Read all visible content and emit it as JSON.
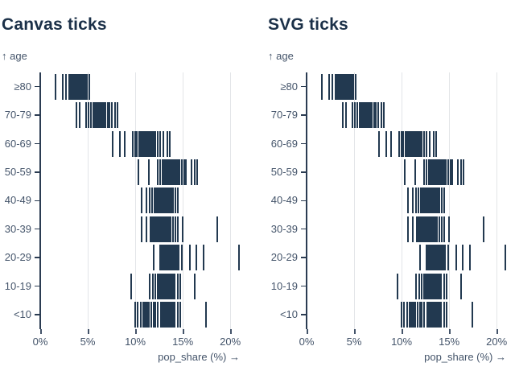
{
  "panels": [
    {
      "title": "Canvas ticks"
    },
    {
      "title": "SVG ticks"
    }
  ],
  "colors": {
    "tick": "#223950",
    "title": "#1b3048",
    "axis_text": "#44546a",
    "domain_line": "#2b3c52",
    "gridline": "#e3e5e8"
  },
  "chart_data": {
    "type": "tick",
    "title_left": "Canvas ticks",
    "title_right": "SVG ticks",
    "ylabel": "↑ age",
    "xlabel": "pop_share (%) →",
    "x_domain": [
      0,
      21
    ],
    "x_tick_values": [
      0,
      5,
      10,
      15,
      20
    ],
    "x_tick_labels": [
      "0%",
      "5%",
      "10%",
      "15%",
      "20%"
    ],
    "gridline_values": [
      5,
      10,
      15,
      20
    ],
    "legend": "none",
    "categories": [
      "≥80",
      "70-79",
      "60-69",
      "50-59",
      "40-49",
      "30-39",
      "20-29",
      "10-19",
      "<10"
    ],
    "series": [
      {
        "name": "≥80",
        "values": [
          1.6,
          2.4,
          2.75,
          3.05,
          3.2,
          3.33,
          3.46,
          3.59,
          3.72,
          3.85,
          3.98,
          4.11,
          4.24,
          4.37,
          4.5,
          4.63,
          4.76,
          4.9,
          5.2
        ]
      },
      {
        "name": "70-79",
        "values": [
          3.8,
          4.15,
          4.8,
          5.05,
          5.3,
          5.55,
          5.68,
          5.81,
          5.94,
          6.07,
          6.2,
          6.33,
          6.46,
          6.59,
          6.72,
          6.9,
          7.1,
          7.3,
          7.55,
          7.9,
          8.15
        ]
      },
      {
        "name": "60-69",
        "values": [
          7.6,
          8.4,
          8.85,
          9.7,
          9.95,
          10.2,
          10.45,
          10.6,
          10.73,
          10.86,
          10.99,
          11.12,
          11.25,
          11.38,
          11.51,
          11.64,
          11.77,
          11.9,
          12.1,
          12.4,
          12.65,
          12.95,
          13.35,
          13.65
        ]
      },
      {
        "name": "50-59",
        "values": [
          10.3,
          11.45,
          12.4,
          12.65,
          12.9,
          13.05,
          13.18,
          13.31,
          13.44,
          13.57,
          13.7,
          13.83,
          13.96,
          14.09,
          14.22,
          14.35,
          14.48,
          14.65,
          14.9,
          15.15,
          15.35,
          15.95,
          16.25,
          16.55
        ]
      },
      {
        "name": "40-49",
        "values": [
          10.7,
          11.15,
          11.5,
          11.8,
          12.0,
          12.15,
          12.28,
          12.41,
          12.54,
          12.67,
          12.8,
          12.93,
          13.06,
          13.19,
          13.32,
          13.45,
          13.58,
          13.71,
          13.84,
          14.0,
          14.2,
          14.45
        ]
      },
      {
        "name": "30-39",
        "values": [
          10.7,
          11.2,
          11.6,
          11.8,
          11.95,
          12.1,
          12.23,
          12.36,
          12.49,
          12.62,
          12.75,
          12.88,
          13.01,
          13.14,
          13.27,
          13.4,
          13.55,
          13.75,
          13.95,
          14.2,
          14.5,
          14.95,
          18.6
        ]
      },
      {
        "name": "20-29",
        "values": [
          11.95,
          12.65,
          12.8,
          12.95,
          13.08,
          13.21,
          13.34,
          13.47,
          13.6,
          13.73,
          13.86,
          13.99,
          14.12,
          14.25,
          14.4,
          14.6,
          14.9,
          15.75,
          16.45,
          17.15,
          20.9
        ]
      },
      {
        "name": "10-19",
        "values": [
          9.55,
          11.5,
          11.85,
          12.15,
          12.35,
          12.5,
          12.63,
          12.76,
          12.89,
          13.02,
          13.15,
          13.28,
          13.41,
          13.54,
          13.67,
          13.8,
          13.95,
          14.15,
          14.45,
          14.75,
          16.3
        ]
      },
      {
        "name": "<10",
        "values": [
          10.0,
          10.25,
          10.55,
          10.8,
          10.95,
          11.1,
          11.25,
          11.45,
          11.7,
          11.95,
          12.15,
          12.4,
          12.7,
          12.9,
          13.05,
          13.2,
          13.35,
          13.5,
          13.65,
          13.8,
          13.95,
          14.15,
          14.45,
          14.75,
          17.45
        ]
      }
    ]
  }
}
